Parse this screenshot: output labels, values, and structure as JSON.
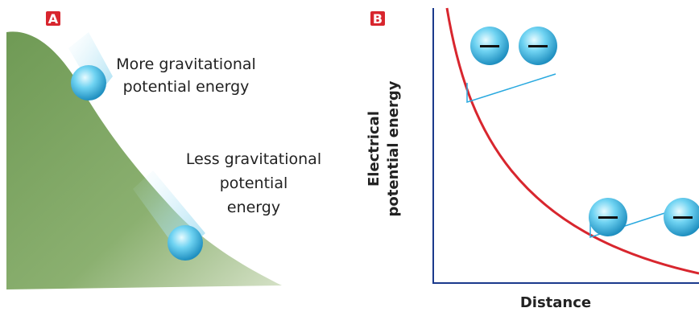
{
  "panel_a": {
    "label": "A",
    "upper_caption": [
      "More gravitational",
      "potential energy"
    ],
    "lower_caption": [
      "Less gravitational",
      "potential",
      "energy"
    ]
  },
  "panel_b": {
    "label": "B",
    "y_axis_label": [
      "Electrical",
      "potential energy"
    ],
    "x_axis_label": "Distance"
  }
}
